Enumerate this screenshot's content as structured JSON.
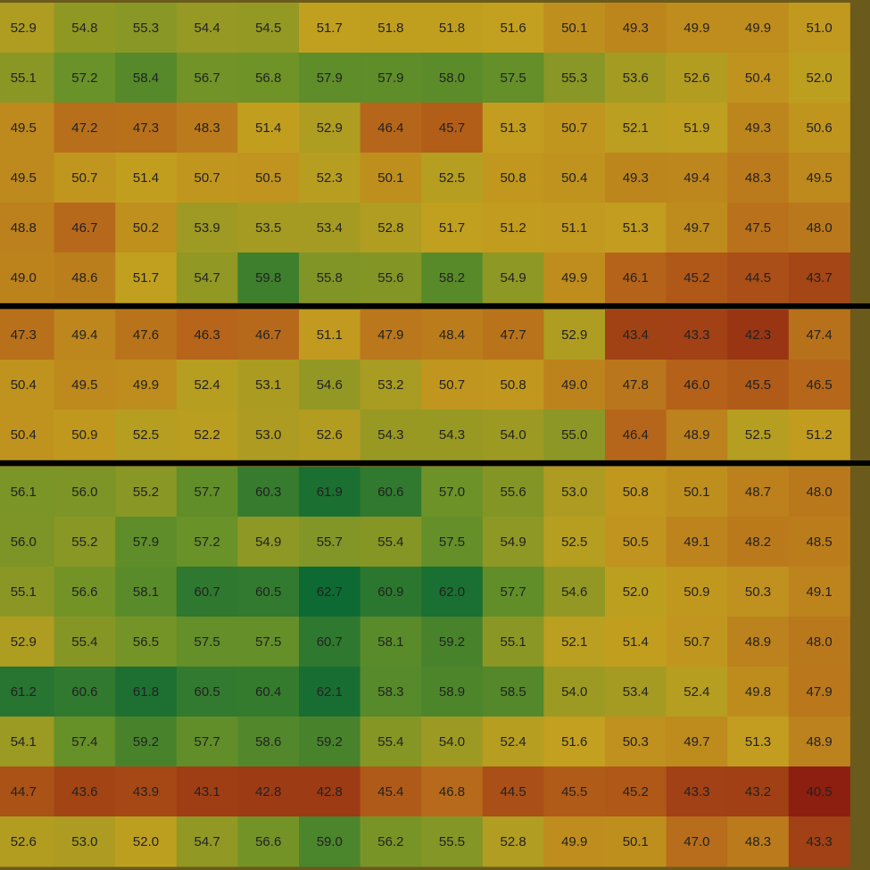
{
  "chart_data": {
    "type": "heatmap",
    "color_scale": [
      "#8c1f0f",
      "#b5621a",
      "#c3a01f",
      "#6a9228",
      "#0e6a33"
    ],
    "separator_color": "#000000",
    "row_groups": [
      {
        "values": [
          [
            52.9,
            54.8,
            55.3,
            54.4,
            54.5,
            51.7,
            51.8,
            51.8,
            51.6,
            50.1,
            49.3,
            49.9,
            49.9,
            51.0
          ],
          [
            55.1,
            57.2,
            58.4,
            56.7,
            56.8,
            57.9,
            57.9,
            58.0,
            57.5,
            55.3,
            53.6,
            52.6,
            50.4,
            52.0
          ],
          [
            49.5,
            47.2,
            47.3,
            48.3,
            51.4,
            52.9,
            46.4,
            45.7,
            51.3,
            50.7,
            52.1,
            51.9,
            49.3,
            50.6
          ],
          [
            49.5,
            50.7,
            51.4,
            50.7,
            50.5,
            52.3,
            50.1,
            52.5,
            50.8,
            50.4,
            49.3,
            49.4,
            48.3,
            49.5
          ],
          [
            48.8,
            46.7,
            50.2,
            53.9,
            53.5,
            53.4,
            52.8,
            51.7,
            51.2,
            51.1,
            51.3,
            49.7,
            47.5,
            48.0
          ],
          [
            49.0,
            48.6,
            51.7,
            54.7,
            59.8,
            55.8,
            55.6,
            58.2,
            54.9,
            49.9,
            46.1,
            45.2,
            44.5,
            43.7
          ]
        ],
        "value_labels": [
          [
            "52.9",
            "54.8",
            "55.3",
            "54.4",
            "54.5",
            "51.7",
            "51.8",
            "51.8",
            "51.6",
            "50.1",
            "49.3",
            "49.9",
            "49.9",
            "51.0"
          ],
          [
            "55.1",
            "57.2",
            "58.4",
            "56.7",
            "56.8",
            "57.9",
            "57.9",
            "58.0",
            "57.5",
            "55.3",
            "53.6",
            "52.6",
            "50.4",
            "52.0"
          ],
          [
            "49.5",
            "47.2",
            "47.3",
            "48.3",
            "51.4",
            "52.9",
            "46.4",
            "45.7",
            "51.3",
            "50.7",
            "52.1",
            "51.9",
            "49.3",
            "50.6"
          ],
          [
            "49.5",
            "50.7",
            "51.4",
            "50.7",
            "50.5",
            "52.3",
            "50.1",
            "52.5",
            "50.8",
            "50.4",
            "49.3",
            "49.4",
            "48.3",
            "49.5"
          ],
          [
            "48.8",
            "46.7",
            "50.2",
            "53.9",
            "53.5",
            "53.4",
            "52.8",
            "51.7",
            "51.2",
            "51.1",
            "51.3",
            "49.7",
            "47.5",
            "48.0"
          ],
          [
            "49.0",
            "48.6",
            "51.7",
            "54.7",
            "59.8",
            "55.8",
            "55.6",
            "58.2",
            "54.9",
            "49.9",
            "46.1",
            "45.2",
            "44.5",
            "43.7"
          ]
        ]
      },
      {
        "values": [
          [
            47.3,
            49.4,
            47.6,
            46.3,
            46.7,
            51.1,
            47.9,
            48.4,
            47.7,
            52.9,
            43.4,
            43.3,
            42.3,
            47.4
          ],
          [
            50.4,
            49.5,
            49.9,
            52.4,
            53.1,
            54.6,
            53.2,
            50.7,
            50.8,
            49.0,
            47.8,
            46.0,
            45.5,
            46.5
          ],
          [
            50.4,
            50.9,
            52.5,
            52.2,
            53.0,
            52.6,
            54.3,
            54.3,
            54.0,
            55.0,
            46.4,
            48.9,
            52.5,
            51.2
          ]
        ],
        "value_labels": [
          [
            "47.3",
            "49.4",
            "47.6",
            "46.3",
            "46.7",
            "51.1",
            "47.9",
            "48.4",
            "47.7",
            "52.9",
            "43.4",
            "43.3",
            "42.3",
            "47.4"
          ],
          [
            "50.4",
            "49.5",
            "49.9",
            "52.4",
            "53.1",
            "54.6",
            "53.2",
            "50.7",
            "50.8",
            "49.0",
            "47.8",
            "46.0",
            "45.5",
            "46.5"
          ],
          [
            "50.4",
            "50.9",
            "52.5",
            "52.2",
            "53.0",
            "52.6",
            "54.3",
            "54.3",
            "54.0",
            "55.0",
            "46.4",
            "48.9",
            "52.5",
            "51.2"
          ]
        ]
      },
      {
        "values": [
          [
            56.1,
            56.0,
            55.2,
            57.7,
            60.3,
            61.9,
            60.6,
            57.0,
            55.6,
            53.0,
            50.8,
            50.1,
            48.7,
            48.0
          ],
          [
            56.0,
            55.2,
            57.9,
            57.2,
            54.9,
            55.7,
            55.4,
            57.5,
            54.9,
            52.5,
            50.5,
            49.1,
            48.2,
            48.5
          ],
          [
            55.1,
            56.6,
            58.1,
            60.7,
            60.5,
            62.7,
            60.9,
            62.0,
            57.7,
            54.6,
            52.0,
            50.9,
            50.3,
            49.1
          ],
          [
            52.9,
            55.4,
            56.5,
            57.5,
            57.5,
            60.7,
            58.1,
            59.2,
            55.1,
            52.1,
            51.4,
            50.7,
            48.9,
            48.0
          ],
          [
            61.2,
            60.6,
            61.8,
            60.5,
            60.4,
            62.1,
            58.3,
            58.9,
            58.5,
            54.0,
            53.4,
            52.4,
            49.8,
            47.9
          ],
          [
            54.1,
            57.4,
            59.2,
            57.7,
            58.6,
            59.2,
            55.4,
            54.0,
            52.4,
            51.6,
            50.3,
            49.7,
            51.3,
            48.9
          ],
          [
            44.7,
            43.6,
            43.9,
            43.1,
            42.8,
            42.8,
            45.4,
            46.8,
            44.5,
            45.5,
            45.2,
            43.3,
            43.2,
            40.5
          ],
          [
            52.6,
            53.0,
            52.0,
            54.7,
            56.6,
            59.0,
            56.2,
            55.5,
            52.8,
            49.9,
            50.1,
            47.0,
            48.3,
            43.3
          ]
        ],
        "value_labels": [
          [
            "56.1",
            "56.0",
            "55.2",
            "57.7",
            "60.3",
            "61.9",
            "60.6",
            "57.0",
            "55.6",
            "53.0",
            "50.8",
            "50.1",
            "48.7",
            "48.0"
          ],
          [
            "56.0",
            "55.2",
            "57.9",
            "57.2",
            "54.9",
            "55.7",
            "55.4",
            "57.5",
            "54.9",
            "52.5",
            "50.5",
            "49.1",
            "48.2",
            "48.5"
          ],
          [
            "55.1",
            "56.6",
            "58.1",
            "60.7",
            "60.5",
            "62.7",
            "60.9",
            "62.0",
            "57.7",
            "54.6",
            "52.0",
            "50.9",
            "50.3",
            "49.1"
          ],
          [
            "52.9",
            "55.4",
            "56.5",
            "57.5",
            "57.5",
            "60.7",
            "58.1",
            "59.2",
            "55.1",
            "52.1",
            "51.4",
            "50.7",
            "48.9",
            "48.0"
          ],
          [
            "61.2",
            "60.6",
            "61.8",
            "60.5",
            "60.4",
            "62.1",
            "58.3",
            "58.9",
            "58.5",
            "54.0",
            "53.4",
            "52.4",
            "49.8",
            "47.9"
          ],
          [
            "54.1",
            "57.4",
            "59.2",
            "57.7",
            "58.6",
            "59.2",
            "55.4",
            "54.0",
            "52.4",
            "51.6",
            "50.3",
            "49.7",
            "51.3",
            "48.9"
          ],
          [
            "44.7",
            "43.6",
            "43.9",
            "43.1",
            "42.8",
            "42.8",
            "45.4",
            "46.8",
            "44.5",
            "45.5",
            "45.2",
            "43.3",
            "43.2",
            "40.5"
          ],
          [
            "52.6",
            "53.0",
            "52.0",
            "54.7",
            "56.6",
            "59.0",
            "56.2",
            "55.5",
            "52.8",
            "49.9",
            "50.1",
            "47.0",
            "48.3",
            "43.3"
          ]
        ]
      }
    ]
  }
}
